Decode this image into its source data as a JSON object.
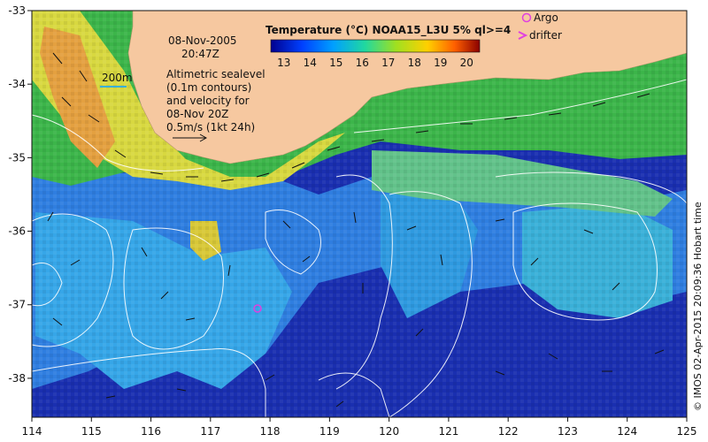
{
  "map": {
    "lat_ticks": [
      "-33",
      "-34",
      "-35",
      "-36",
      "-37",
      "-38"
    ],
    "lon_ticks": [
      "114",
      "115",
      "116",
      "117",
      "118",
      "119",
      "120",
      "121",
      "122",
      "123",
      "124",
      "125"
    ],
    "land_color": "#f6c8a0",
    "ocean_colors": {
      "deep": "#1a2fb0",
      "mid": "#2a7ad8",
      "shelf": "#38b33a",
      "warm": "#e6a43a"
    }
  },
  "annotation": {
    "date": "08-Nov-2005",
    "time": "20:47Z",
    "scale_label": "200m",
    "description_lines": [
      "Altimetric sealevel",
      "(0.1m contours)",
      "and velocity for",
      "08-Nov 20Z"
    ],
    "velocity_scale": "0.5m/s (1kt 24h)"
  },
  "colorbar": {
    "title": "Temperature (°C) NOAA15_L3U 5% ql>=4",
    "ticks": [
      "13",
      "14",
      "15",
      "16",
      "17",
      "18",
      "19",
      "20"
    ]
  },
  "legend": {
    "argo_label": "Argo",
    "drifter_label": "drifter",
    "marker_color": "#e040e0"
  },
  "credit": "© IMOS 02-Apr-2015 20:09:36 Hobart time"
}
